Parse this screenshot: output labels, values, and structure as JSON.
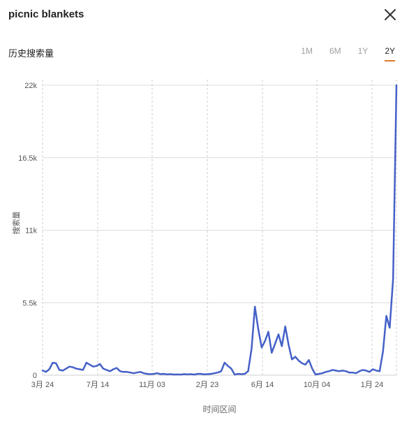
{
  "header": {
    "title": "picnic blankets",
    "close_icon": "close-icon"
  },
  "subheader": {
    "label": "历史搜索量",
    "ranges": [
      "1M",
      "6M",
      "1Y",
      "2Y"
    ],
    "active_range": "2Y",
    "accent_color": "#e07b22"
  },
  "chart_data": {
    "type": "line",
    "title": "",
    "xlabel": "时间区间",
    "ylabel": "搜索量",
    "y_ticks": [
      "0",
      "5.5k",
      "11k",
      "16.5k",
      "22k"
    ],
    "ylim": [
      0,
      22000
    ],
    "x_ticks": [
      "3月 24",
      "7月 14",
      "11月 03",
      "2月 23",
      "6月 14",
      "10月 04",
      "1月 24"
    ],
    "grid": true,
    "line_color": "#4560c8",
    "series": [
      {
        "values": [
          350,
          250,
          450,
          950,
          900,
          400,
          350,
          500,
          650,
          600,
          500,
          450,
          400,
          950,
          800,
          650,
          700,
          850,
          500,
          400,
          300,
          450,
          550,
          300,
          250,
          250,
          200,
          150,
          200,
          250,
          150,
          100,
          80,
          100,
          150,
          80,
          100,
          60,
          80,
          50,
          60,
          50,
          80,
          60,
          80,
          50,
          100,
          100,
          60,
          80,
          100,
          150,
          200,
          300,
          950,
          700,
          500,
          50,
          100,
          80,
          100,
          300,
          2000,
          5200,
          3500,
          2100,
          2600,
          3300,
          1700,
          2400,
          3100,
          2200,
          3700,
          2300,
          1200,
          1400,
          1100,
          900,
          800,
          1150,
          500,
          50,
          100,
          150,
          250,
          300,
          400,
          350,
          300,
          350,
          300,
          200,
          200,
          150,
          300,
          400,
          350,
          250,
          450,
          350,
          300,
          1800,
          4500,
          3600,
          7300,
          22000
        ]
      }
    ]
  }
}
